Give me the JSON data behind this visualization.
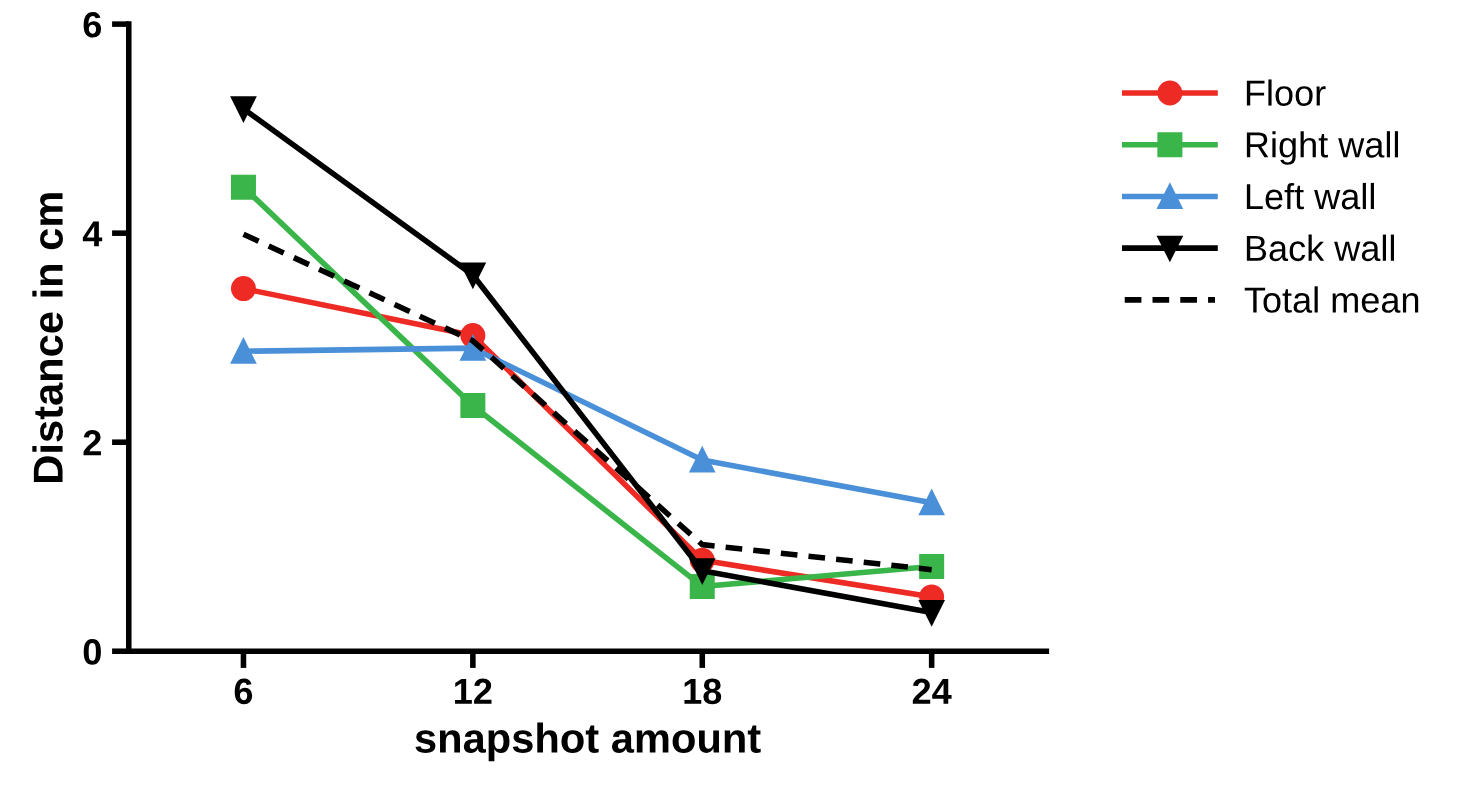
{
  "chart_data": {
    "type": "line",
    "xlabel": "snapshot amount",
    "ylabel": "Distance in cm",
    "x": [
      6,
      12,
      18,
      24
    ],
    "xlim": [
      3,
      27
    ],
    "xticks": [
      6,
      12,
      18,
      24
    ],
    "ylim": [
      0,
      6
    ],
    "yticks": [
      0,
      2,
      4,
      6
    ],
    "grid": false,
    "legend": "right",
    "series": [
      {
        "name": "Floor",
        "color": "#ed2a24",
        "marker": "circle",
        "line_style": "solid",
        "values": [
          3.47,
          3.02,
          0.87,
          0.52
        ]
      },
      {
        "name": "Right wall",
        "color": "#3ab54a",
        "marker": "square",
        "line_style": "solid",
        "values": [
          4.44,
          2.35,
          0.62,
          0.81
        ]
      },
      {
        "name": "Left wall",
        "color": "#4a90d9",
        "marker": "triangle",
        "line_style": "solid",
        "values": [
          2.87,
          2.9,
          1.83,
          1.42
        ]
      },
      {
        "name": "Back wall",
        "color": "#000000",
        "marker": "triangle-down",
        "line_style": "solid",
        "values": [
          5.19,
          3.6,
          0.77,
          0.37
        ]
      },
      {
        "name": "Total mean",
        "color": "#000000",
        "marker": "none",
        "line_style": "dashed",
        "values": [
          3.99,
          2.97,
          1.02,
          0.78
        ]
      }
    ]
  }
}
